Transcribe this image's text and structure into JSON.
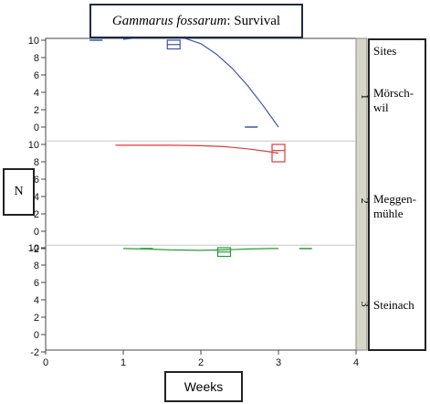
{
  "title": {
    "italic": "Gammarus fossarum",
    "rest": ": Survival"
  },
  "ylabel": "N",
  "xlabel": "Weeks",
  "legend": {
    "title": "Sites",
    "items": [
      "Mörsch-\nwil",
      "Meggen-\nmühle",
      "Steinach"
    ]
  },
  "colors": {
    "series1": "#3b55b0",
    "series2": "#e03a3a",
    "series3": "#2a9a3a",
    "strip": "#d7d7c8",
    "separator": "#c8c8c8"
  },
  "chart_data": {
    "type": "line",
    "xlabel": "Weeks",
    "ylabel": "N",
    "xlim": [
      0,
      4
    ],
    "x_ticks": [
      0,
      1,
      2,
      3,
      4
    ],
    "panel_ylim": [
      -2,
      11
    ],
    "panel_y_ticks": [
      [
        10,
        8,
        6,
        4,
        2,
        0
      ],
      [
        10,
        8,
        6,
        4,
        2,
        0,
        -2
      ],
      [
        10,
        8,
        6,
        4,
        2,
        0,
        -2
      ]
    ],
    "series": [
      {
        "name": "1",
        "site": "Mörschwil",
        "curve": {
          "x": [
            1.0,
            1.2,
            1.4,
            1.6,
            1.8,
            2.0,
            2.2,
            2.4,
            2.6,
            2.8,
            3.0
          ],
          "y": [
            10.1,
            10.3,
            10.45,
            10.45,
            10.2,
            9.6,
            8.4,
            6.8,
            4.8,
            2.5,
            0.0
          ]
        },
        "marks": [
          {
            "x": 0.65,
            "y": 10.0
          },
          {
            "x": 2.65,
            "y": 0.0
          }
        ],
        "box": {
          "x": 1.65,
          "q1": 9.0,
          "median": 9.5,
          "q3": 10.0
        }
      },
      {
        "name": "2",
        "site": "Meggenmühle",
        "curve": {
          "x": [
            0.9,
            1.2,
            1.6,
            2.0,
            2.3,
            2.6,
            2.85,
            3.0
          ],
          "y": [
            9.9,
            9.9,
            9.9,
            9.85,
            9.75,
            9.5,
            9.2,
            9.0
          ]
        },
        "marks": [],
        "box": {
          "x": 3.0,
          "q1": 8.0,
          "median": 9.3,
          "q3": 10.0
        }
      },
      {
        "name": "3",
        "site": "Steinach",
        "curve": {
          "x": [
            1.0,
            1.3,
            1.6,
            2.0,
            2.3,
            2.6,
            2.9,
            3.0
          ],
          "y": [
            9.9,
            9.85,
            9.75,
            9.7,
            9.75,
            9.85,
            9.9,
            9.9
          ]
        },
        "marks": [
          {
            "x": 1.3,
            "y": 9.9
          },
          {
            "x": 3.35,
            "y": 9.9
          }
        ],
        "box": {
          "x": 2.3,
          "q1": 9.0,
          "median": 9.5,
          "q3": 10.0
        }
      }
    ]
  }
}
